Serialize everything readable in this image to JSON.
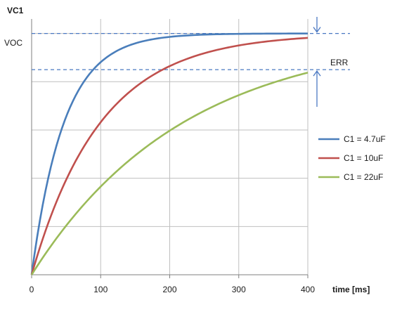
{
  "chart_data": {
    "type": "line",
    "ylabel": "VC1",
    "xlabel": "time [ms]",
    "xlim": [
      0,
      400
    ],
    "ylim": [
      0,
      1.06
    ],
    "xticks": [
      0,
      100,
      200,
      300,
      400
    ],
    "x_tick_labels": [
      "0",
      "100",
      "200",
      "300",
      "400"
    ],
    "grid": true,
    "legend_position": "right",
    "reference_lines": [
      {
        "label": "VOC",
        "value": 1.0,
        "style": "dashed",
        "color": "#4a78c2"
      },
      {
        "label": "",
        "value": 0.85,
        "style": "dashed",
        "color": "#4a78c2"
      }
    ],
    "annotation": {
      "text": "ERR",
      "between": [
        0.85,
        1.0
      ]
    },
    "series": [
      {
        "name": "C1 = 4.7uF",
        "color": "#4a7ebb",
        "tau_ms": 47,
        "x": [
          0,
          25,
          50,
          75,
          100,
          150,
          200,
          250,
          300,
          350,
          400
        ],
        "y": [
          0,
          0.41,
          0.65,
          0.8,
          0.88,
          0.96,
          0.99,
          0.995,
          0.998,
          0.999,
          1.0
        ]
      },
      {
        "name": "C1 = 10uF",
        "color": "#c0504d",
        "tau_ms": 100,
        "x": [
          0,
          25,
          50,
          75,
          100,
          150,
          200,
          250,
          300,
          350,
          400
        ],
        "y": [
          0,
          0.22,
          0.39,
          0.53,
          0.63,
          0.78,
          0.86,
          0.92,
          0.95,
          0.97,
          0.98
        ]
      },
      {
        "name": "C1 = 22uF",
        "color": "#9bbb59",
        "tau_ms": 220,
        "x": [
          0,
          25,
          50,
          75,
          100,
          150,
          200,
          250,
          300,
          350,
          400
        ],
        "y": [
          0,
          0.11,
          0.2,
          0.29,
          0.37,
          0.49,
          0.6,
          0.68,
          0.75,
          0.8,
          0.84
        ]
      }
    ]
  }
}
